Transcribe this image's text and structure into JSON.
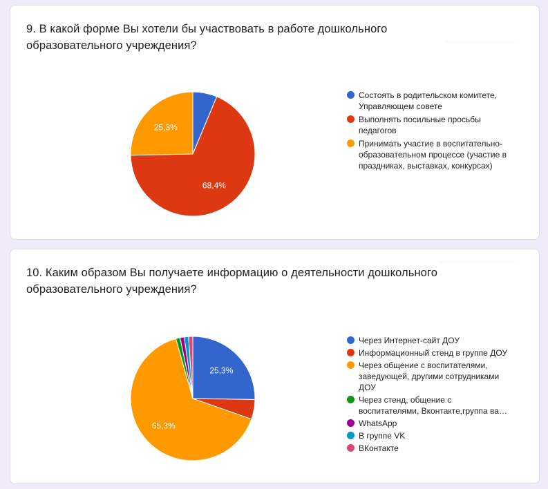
{
  "questions": [
    {
      "title": "9. В какой форме Вы хотели бы участвовать в работе дошкольного образовательного учреждения?"
    },
    {
      "title": "10. Каким образом Вы получаете информацию о деятельности дошкольного образовательного учреждения?"
    }
  ],
  "chart_data": [
    {
      "type": "pie",
      "categories": [
        "Состоять в родительском комитете, Управляющем совете",
        "Выполнять посильные просьбы педагогов",
        "Принимать участие в воспитательно-образовательном процессе (участие в праздниках, выставках, конкурсах)"
      ],
      "values": [
        6.3,
        68.4,
        25.3
      ],
      "labels": [
        "",
        "68,4%",
        "25,3%"
      ],
      "colors": [
        "#3366cc",
        "#dc3912",
        "#ff9900"
      ],
      "legend": "right"
    },
    {
      "type": "pie",
      "categories": [
        "Через Интернет-сайт ДОУ",
        "Информационный стенд в группе ДОУ",
        "Через общение с воспитателями, заведующей, другими сотрудниками ДОУ",
        "Через стенд, общение с воспитателями, Вконтакте,группа ва…",
        "WhatsApp",
        "В группе VK",
        "ВКонтакте"
      ],
      "values": [
        25.3,
        5.1,
        65.3,
        1.1,
        1.1,
        1.1,
        1.1
      ],
      "labels": [
        "25,3%",
        "",
        "65,3%",
        "",
        "",
        "",
        ""
      ],
      "colors": [
        "#3366cc",
        "#dc3912",
        "#ff9900",
        "#109618",
        "#990099",
        "#0099c6",
        "#dd4477"
      ],
      "legend": "right"
    }
  ]
}
